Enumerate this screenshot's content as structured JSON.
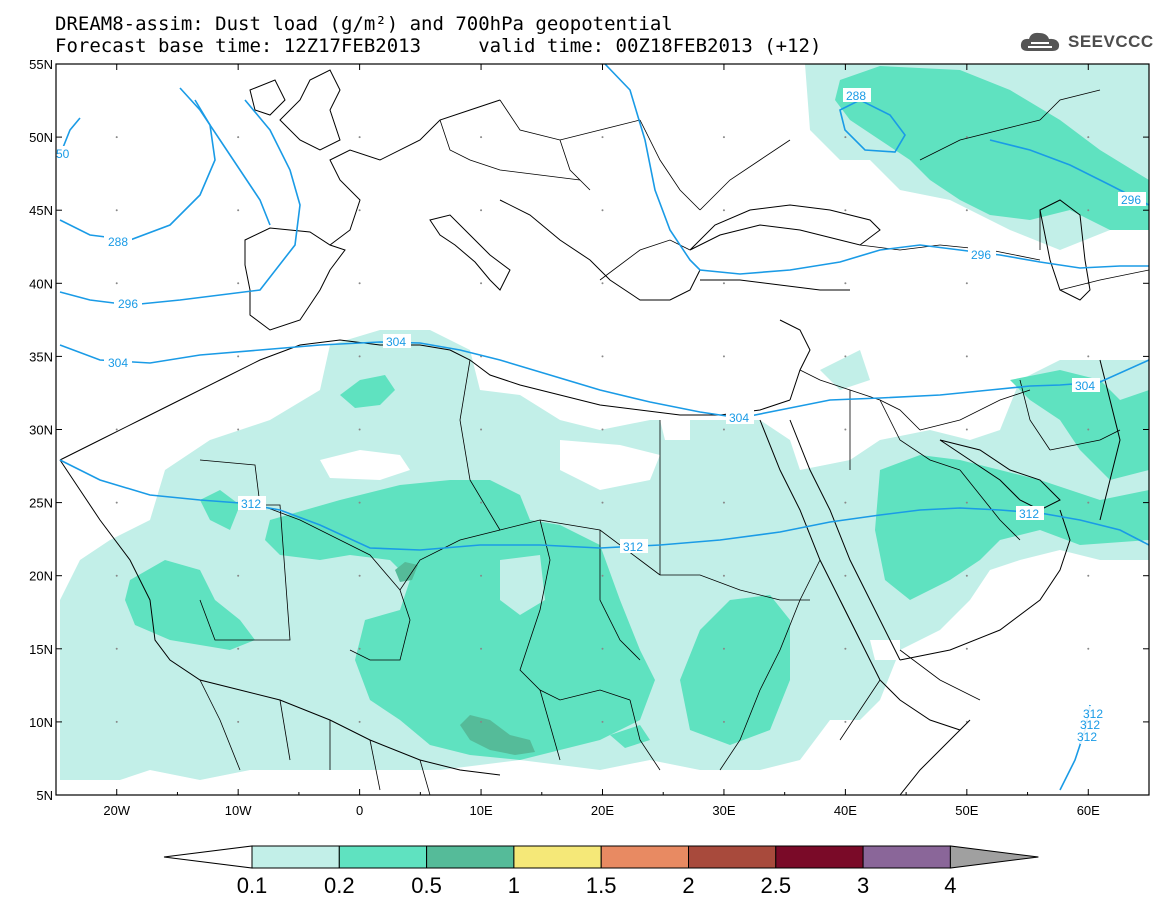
{
  "title_line1": "DREAM8-assim: Dust load (g/m²) and 700hPa geopotential",
  "title_line2": "Forecast base time: 12Z17FEB2013     valid time: 00Z18FEB2013 (+12)",
  "brand": {
    "name": "SEEVCCC",
    "icon": "cloud-logo-icon"
  },
  "map": {
    "lon_range": [
      -25,
      65
    ],
    "lat_range": [
      5,
      55
    ],
    "lat_labels": [
      "55N",
      "50N",
      "45N",
      "40N",
      "35N",
      "30N",
      "25N",
      "20N",
      "15N",
      "10N",
      "5N"
    ],
    "lon_labels": [
      "20W",
      "10W",
      "0",
      "10E",
      "20E",
      "30E",
      "40E",
      "50E",
      "60E"
    ],
    "contour_labels": [
      "288",
      "296",
      "304",
      "312"
    ],
    "contour_label_texts": [
      "50",
      "288",
      "296",
      "304",
      "312",
      "288",
      "296",
      "304",
      "304",
      "312",
      "312",
      "312",
      "296",
      "304",
      "312",
      "312",
      "312"
    ],
    "contour_color": "#1a9be6"
  },
  "colorbar": {
    "labels": [
      "0.1",
      "0.2",
      "0.5",
      "1",
      "1.5",
      "2",
      "2.5",
      "3",
      "4"
    ],
    "colors": [
      "#c2efe8",
      "#5fe2c0",
      "#55bb99",
      "#f5e878",
      "#e88a62",
      "#a84a3c",
      "#7a0a28",
      "#8a6699",
      "#a0a0a0"
    ]
  }
}
